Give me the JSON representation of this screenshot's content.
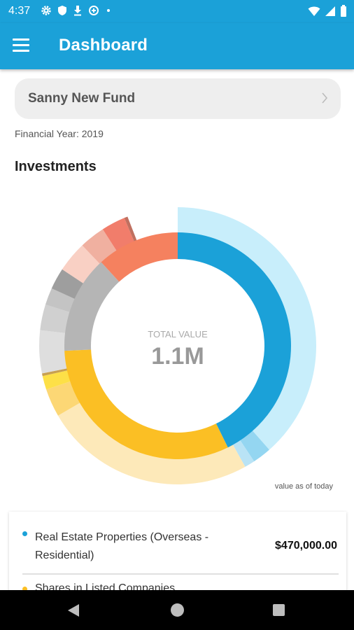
{
  "status_bar": {
    "time": "4:37"
  },
  "app_bar": {
    "title": "Dashboard"
  },
  "fund_selector": {
    "name": "Sanny New Fund"
  },
  "financial_year": "Financial Year: 2019",
  "section_title": "Investments",
  "chart_data": {
    "type": "pie",
    "subtype": "double donut",
    "center_label": "TOTAL VALUE",
    "center_value": "1.1M",
    "footnote": "value as of today",
    "inner_ring": [
      {
        "color": "#1ba1d8",
        "fraction": 0.427
      },
      {
        "color": "#fbbf24",
        "fraction": 0.316
      },
      {
        "color": "#b5b5b5",
        "fraction": 0.139
      },
      {
        "color": "#f5815f",
        "fraction": 0.118
      }
    ],
    "outer_ring": [
      {
        "color": "#c8eefb",
        "fraction": 0.385
      },
      {
        "color": "#94d6f1",
        "fraction": 0.022
      },
      {
        "color": "#b9e3f5",
        "fraction": 0.012
      },
      {
        "color": "#fde9b9",
        "fraction": 0.247
      },
      {
        "color": "#fcd775",
        "fraction": 0.033
      },
      {
        "color": "#fde047",
        "fraction": 0.016
      },
      {
        "color": "#c8a050",
        "fraction": 0.003
      },
      {
        "color": "#dedede",
        "fraction": 0.05
      },
      {
        "color": "#d0d0d0",
        "fraction": 0.03
      },
      {
        "color": "#c4c4c4",
        "fraction": 0.02
      },
      {
        "color": "#9e9e9e",
        "fraction": 0.025
      },
      {
        "color": "#f9d0c4",
        "fraction": 0.036
      },
      {
        "color": "#f0b0a0",
        "fraction": 0.03
      },
      {
        "color": "#f17d6b",
        "fraction": 0.028
      },
      {
        "color": "#c07060",
        "fraction": 0.004
      }
    ]
  },
  "holdings": [
    {
      "label": "Real Estate Properties (Overseas - Residential)",
      "amount": "$470,000.00",
      "color": "#1ba1d8"
    },
    {
      "label": "Shares in Listed Companies",
      "color": "#fbbf24"
    }
  ],
  "icons": {
    "status": [
      "gear-icon",
      "shield-icon",
      "download-icon",
      "data-saver-icon",
      "dot-icon",
      "wifi-icon",
      "signal-icon",
      "battery-icon"
    ],
    "nav": [
      "back-icon",
      "home-icon",
      "recents-icon"
    ]
  }
}
